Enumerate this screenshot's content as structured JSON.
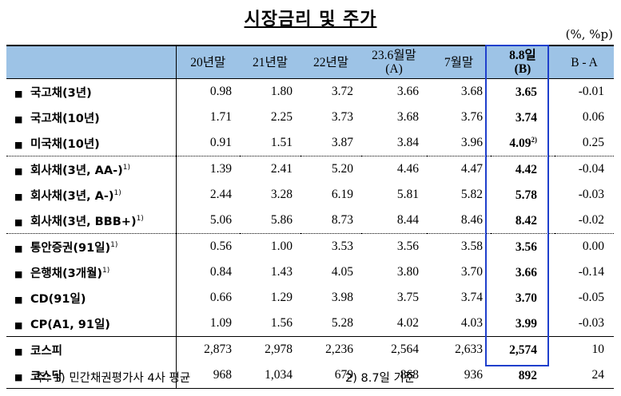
{
  "title": "시장금리 및 주가",
  "unit": "(%, %p)",
  "columns": [
    "20년말",
    "21년말",
    "22년말",
    "23.6월말",
    "(A)",
    "7월말",
    "8.8일",
    "(B)",
    "B - A"
  ],
  "rows": [
    {
      "label": "국고채(3년)",
      "sup": "",
      "v": [
        "0.98",
        "1.80",
        "3.72",
        "3.66",
        "3.68",
        "3.65",
        "-0.01"
      ],
      "vsup": ""
    },
    {
      "label": "국고채(10년)",
      "sup": "",
      "v": [
        "1.71",
        "2.25",
        "3.73",
        "3.68",
        "3.76",
        "3.74",
        "0.06"
      ],
      "vsup": ""
    },
    {
      "label": "미국채(10년)",
      "sup": "",
      "v": [
        "0.91",
        "1.51",
        "3.87",
        "3.84",
        "3.96",
        "4.09",
        "0.25"
      ],
      "vsup": "2)"
    },
    {
      "label": "회사채(3년, AA-)",
      "sup": "1)",
      "v": [
        "1.39",
        "2.41",
        "5.20",
        "4.46",
        "4.47",
        "4.42",
        "-0.04"
      ],
      "vsup": ""
    },
    {
      "label": "회사채(3년, A-)",
      "sup": "1)",
      "v": [
        "2.44",
        "3.28",
        "6.19",
        "5.81",
        "5.82",
        "5.78",
        "-0.03"
      ],
      "vsup": ""
    },
    {
      "label": "회사채(3년, BBB+)",
      "sup": "1)",
      "v": [
        "5.06",
        "5.86",
        "8.73",
        "8.44",
        "8.46",
        "8.42",
        "-0.02"
      ],
      "vsup": ""
    },
    {
      "label": "통안증권(91일)",
      "sup": "1)",
      "v": [
        "0.56",
        "1.00",
        "3.53",
        "3.56",
        "3.58",
        "3.56",
        "0.00"
      ],
      "vsup": ""
    },
    {
      "label": "은행채(3개월)",
      "sup": "1)",
      "v": [
        "0.84",
        "1.43",
        "4.05",
        "3.80",
        "3.70",
        "3.66",
        "-0.14"
      ],
      "vsup": ""
    },
    {
      "label": "CD(91일)",
      "sup": "",
      "v": [
        "0.66",
        "1.29",
        "3.98",
        "3.75",
        "3.74",
        "3.70",
        "-0.05"
      ],
      "vsup": ""
    },
    {
      "label": "CP(A1, 91일)",
      "sup": "",
      "v": [
        "1.09",
        "1.56",
        "5.28",
        "4.02",
        "4.03",
        "3.99",
        "-0.03"
      ],
      "vsup": ""
    },
    {
      "label": "코스피",
      "sup": "",
      "v": [
        "2,873",
        "2,978",
        "2,236",
        "2,564",
        "2,633",
        "2,574",
        "10"
      ],
      "vsup": ""
    },
    {
      "label": "코스닥",
      "sup": "",
      "v": [
        "968",
        "1,034",
        "679",
        "868",
        "936",
        "892",
        "24"
      ],
      "vsup": ""
    }
  ],
  "bullet": "■",
  "footnote1": "주: 1) 민간채권평가사 4사 평균",
  "footnote2": "2) 8.7일 기준"
}
